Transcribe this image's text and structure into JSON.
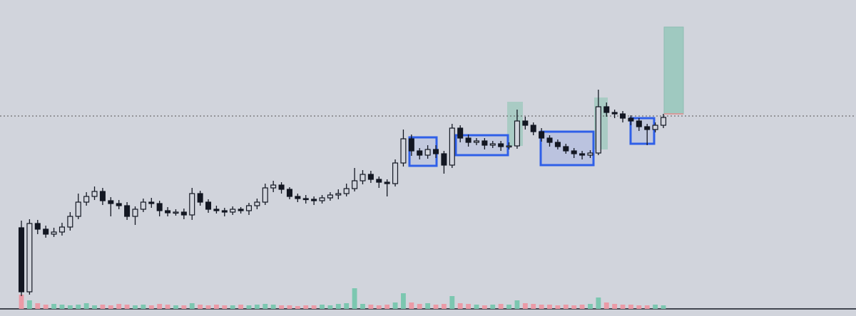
{
  "chart_data": {
    "type": "candlestick",
    "open": [
      124,
      34,
      130,
      122,
      115,
      118,
      125,
      140,
      160,
      168,
      175,
      162,
      158,
      155,
      140,
      150,
      160,
      158,
      148,
      145,
      146,
      142,
      172,
      160,
      150,
      148,
      146,
      150,
      148,
      155,
      160,
      180,
      184,
      178,
      168,
      165,
      164,
      162,
      166,
      170,
      172,
      179,
      190,
      199,
      192,
      188,
      186,
      215,
      249,
      232,
      226,
      234,
      228,
      212,
      264,
      250,
      244,
      246,
      240,
      242,
      238,
      239,
      274,
      268,
      259,
      250,
      244,
      238,
      232,
      228,
      226,
      229,
      294,
      286,
      284,
      278,
      274,
      266,
      262,
      268
    ],
    "high": [
      134,
      136,
      135,
      127,
      124,
      131,
      146,
      172,
      174,
      182,
      180,
      167,
      163,
      160,
      154,
      165,
      166,
      162,
      153,
      150,
      151,
      180,
      176,
      164,
      155,
      152,
      154,
      153,
      159,
      165,
      186,
      190,
      188,
      181,
      172,
      170,
      168,
      170,
      174,
      178,
      186,
      208,
      205,
      204,
      196,
      192,
      220,
      262,
      255,
      236,
      240,
      240,
      232,
      270,
      268,
      255,
      250,
      250,
      246,
      246,
      244,
      290,
      280,
      272,
      264,
      254,
      248,
      242,
      236,
      232,
      233,
      318,
      300,
      290,
      288,
      282,
      278,
      270,
      272,
      284
    ],
    "low": [
      28,
      30,
      115,
      110,
      111,
      113,
      120,
      136,
      155,
      163,
      156,
      140,
      150,
      135,
      128,
      146,
      152,
      140,
      140,
      141,
      136,
      135,
      155,
      145,
      144,
      140,
      142,
      144,
      142,
      150,
      156,
      174,
      172,
      164,
      160,
      158,
      156,
      158,
      162,
      164,
      168,
      175,
      185,
      187,
      180,
      168,
      182,
      210,
      225,
      220,
      221,
      222,
      200,
      208,
      244,
      238,
      240,
      234,
      236,
      232,
      234,
      235,
      262,
      254,
      245,
      238,
      234,
      228,
      222,
      220,
      222,
      226,
      280,
      278,
      272,
      268,
      260,
      240,
      258,
      264
    ],
    "close": [
      34,
      130,
      122,
      115,
      118,
      125,
      140,
      160,
      168,
      175,
      162,
      158,
      155,
      140,
      150,
      160,
      158,
      148,
      145,
      146,
      142,
      172,
      160,
      150,
      148,
      146,
      150,
      148,
      155,
      160,
      180,
      184,
      178,
      168,
      165,
      164,
      162,
      166,
      170,
      172,
      179,
      190,
      199,
      192,
      188,
      186,
      215,
      249,
      232,
      226,
      234,
      228,
      212,
      264,
      250,
      244,
      246,
      240,
      242,
      238,
      239,
      274,
      268,
      259,
      250,
      244,
      238,
      232,
      228,
      226,
      229,
      294,
      286,
      284,
      278,
      274,
      266,
      262,
      268,
      279
    ],
    "volume": [
      20,
      12,
      8,
      6,
      7,
      6,
      5,
      6,
      8,
      5,
      6,
      5,
      7,
      6,
      5,
      6,
      5,
      7,
      6,
      5,
      5,
      8,
      6,
      5,
      6,
      5,
      5,
      6,
      5,
      6,
      7,
      6,
      5,
      5,
      4,
      5,
      5,
      6,
      5,
      7,
      8,
      29,
      7,
      6,
      5,
      6,
      9,
      22,
      9,
      7,
      8,
      6,
      7,
      18,
      8,
      7,
      6,
      5,
      6,
      7,
      6,
      12,
      8,
      7,
      6,
      6,
      5,
      6,
      5,
      6,
      7,
      16,
      9,
      7,
      6,
      6,
      5,
      5,
      6,
      5
    ],
    "ylim": [
      0,
      444
    ],
    "volume_ylim": [
      0,
      100
    ],
    "price_line": 281,
    "candle_color": "#131722",
    "up_volume_color": "#7cc7b0",
    "down_volume_color": "#eb9aa6"
  }
}
